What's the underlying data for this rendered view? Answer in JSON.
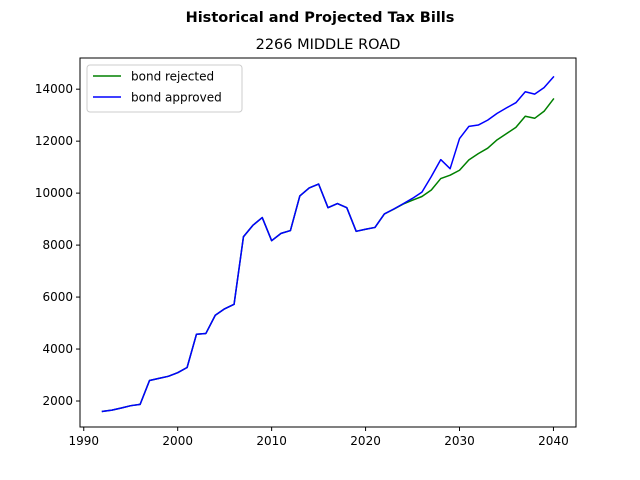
{
  "figure": {
    "suptitle": "Historical and Projected Tax Bills",
    "title": "2266 MIDDLE ROAD"
  },
  "chart_data": {
    "type": "line",
    "title": "2266 MIDDLE ROAD",
    "suptitle": "Historical and Projected Tax Bills",
    "xlabel": "",
    "ylabel": "",
    "xlim": [
      1989.6,
      2042.4
    ],
    "ylim": [
      1000,
      15200
    ],
    "xticks": [
      1990,
      2000,
      2010,
      2020,
      2030,
      2040
    ],
    "yticks": [
      2000,
      4000,
      6000,
      8000,
      10000,
      12000,
      14000
    ],
    "grid": false,
    "legend": {
      "location": "upper-left",
      "entries": [
        "bond rejected",
        "bond approved"
      ]
    },
    "x": [
      1992,
      1993,
      1994,
      1995,
      1996,
      1997,
      1998,
      1999,
      2000,
      2001,
      2002,
      2003,
      2004,
      2005,
      2006,
      2007,
      2008,
      2009,
      2010,
      2011,
      2012,
      2013,
      2014,
      2015,
      2016,
      2017,
      2018,
      2019,
      2020,
      2021,
      2022,
      2023,
      2024,
      2025,
      2026,
      2027,
      2028,
      2029,
      2030,
      2031,
      2032,
      2033,
      2034,
      2035,
      2036,
      2037,
      2038,
      2039,
      2040
    ],
    "series": [
      {
        "name": "bond rejected",
        "color": "#008000",
        "values": [
          1600,
          1650,
          1730,
          1820,
          1870,
          2790,
          2870,
          2950,
          3090,
          3290,
          4570,
          4600,
          5300,
          5550,
          5720,
          8320,
          8760,
          9060,
          8170,
          8450,
          8560,
          9890,
          10200,
          10350,
          9440,
          9600,
          9440,
          8530,
          8610,
          8680,
          9200,
          9380,
          9580,
          9730,
          9870,
          10120,
          10560,
          10690,
          10880,
          11280,
          11520,
          11730,
          12050,
          12290,
          12530,
          12960,
          12880,
          13150,
          13620
        ]
      },
      {
        "name": "bond approved",
        "color": "#0000ff",
        "values": [
          1600,
          1650,
          1730,
          1820,
          1870,
          2790,
          2870,
          2950,
          3090,
          3290,
          4570,
          4600,
          5300,
          5550,
          5720,
          8320,
          8760,
          9060,
          8170,
          8450,
          8560,
          9890,
          10200,
          10350,
          9440,
          9600,
          9440,
          8530,
          8610,
          8680,
          9200,
          9390,
          9590,
          9800,
          10040,
          10640,
          11290,
          10940,
          12100,
          12570,
          12620,
          12810,
          13070,
          13280,
          13480,
          13900,
          13810,
          14060,
          14470
        ]
      }
    ]
  }
}
